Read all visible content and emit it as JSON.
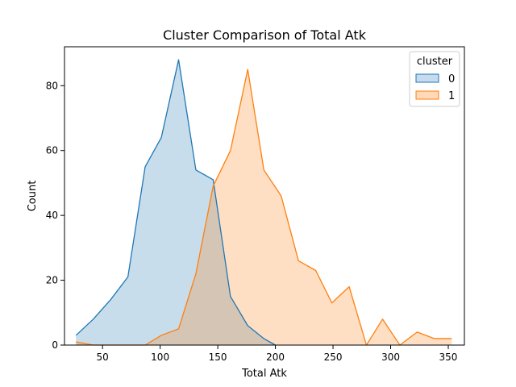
{
  "chart_data": {
    "type": "area",
    "title": "Cluster Comparison of Total Atk",
    "xlabel": "Total Atk",
    "ylabel": "Count",
    "xlim": [
      17,
      364
    ],
    "ylim": [
      0,
      92
    ],
    "xticks": [
      50,
      100,
      150,
      200,
      250,
      300,
      350
    ],
    "yticks": [
      0,
      20,
      40,
      60,
      80
    ],
    "grid": false,
    "legend": {
      "title": "cluster",
      "placement": "top-right"
    },
    "series": [
      {
        "name": "0",
        "color": "#1f77b4",
        "fill": "#c6dbee",
        "x": [
          27,
          42,
          57,
          72,
          87,
          101,
          116,
          131,
          146,
          161,
          176,
          190,
          200
        ],
        "y": [
          3,
          8,
          14,
          21,
          55,
          64,
          88,
          54,
          51,
          15,
          6,
          2,
          0
        ]
      },
      {
        "name": "1",
        "color": "#ff7f0e",
        "fill": "#ffd9b8",
        "x": [
          27,
          42,
          87,
          101,
          116,
          131,
          146,
          161,
          176,
          190,
          205,
          220,
          235,
          249,
          264,
          279,
          293,
          308,
          323,
          338,
          353
        ],
        "y": [
          1,
          0,
          0,
          3,
          5,
          22,
          49,
          60,
          85,
          54,
          46,
          26,
          23,
          13,
          18,
          0,
          8,
          0,
          4,
          2,
          2
        ]
      }
    ]
  }
}
